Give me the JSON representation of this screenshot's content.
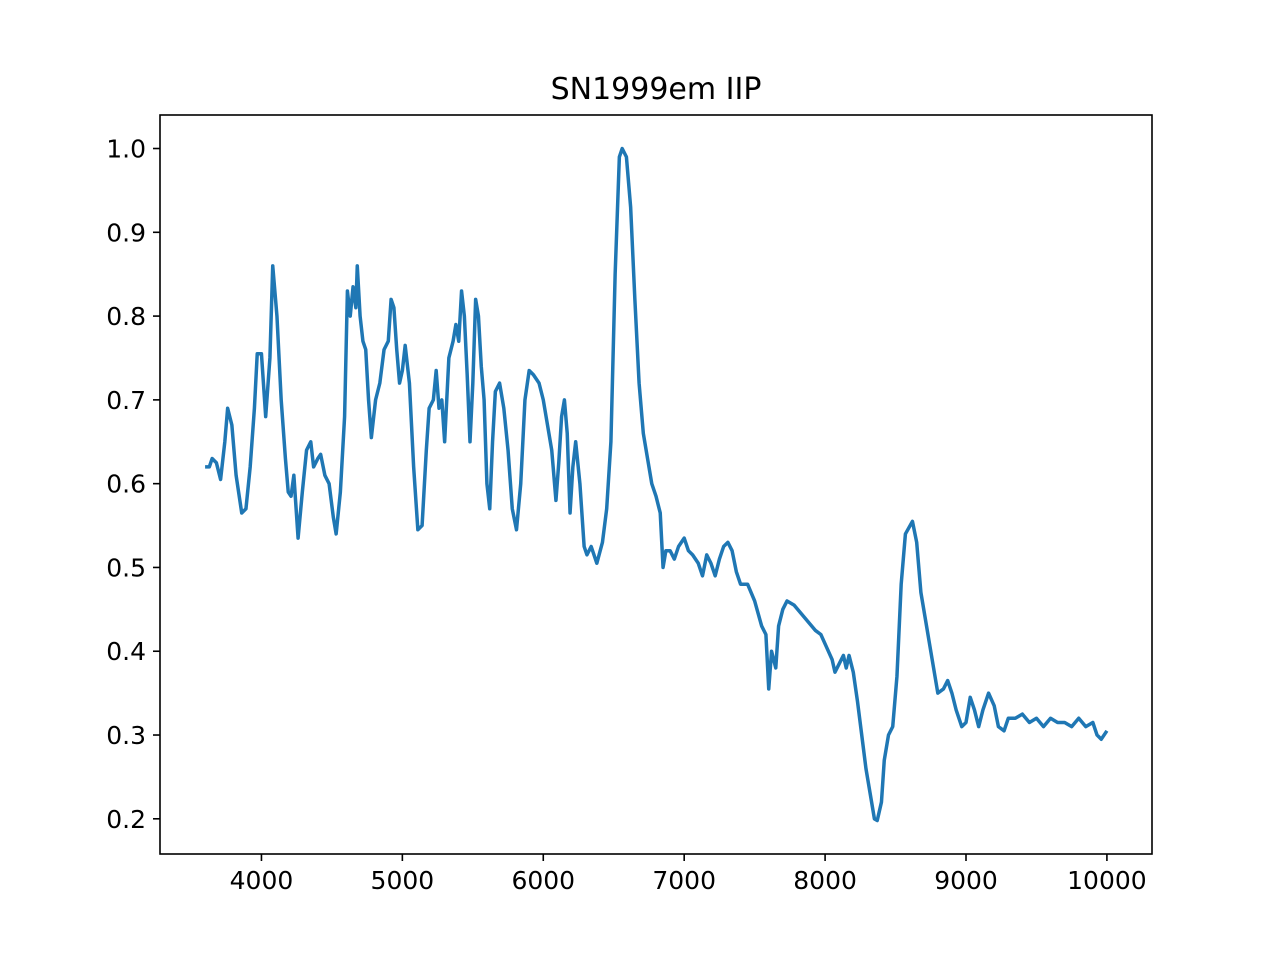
{
  "chart_data": {
    "type": "line",
    "title": "SN1999em IIP",
    "x": [
      3600,
      3630,
      3650,
      3680,
      3710,
      3740,
      3760,
      3790,
      3820,
      3860,
      3890,
      3920,
      3950,
      3970,
      4000,
      4030,
      4060,
      4080,
      4110,
      4140,
      4170,
      4190,
      4210,
      4230,
      4260,
      4290,
      4320,
      4350,
      4370,
      4400,
      4420,
      4450,
      4480,
      4510,
      4530,
      4560,
      4590,
      4610,
      4630,
      4650,
      4670,
      4680,
      4700,
      4720,
      4740,
      4760,
      4780,
      4810,
      4840,
      4870,
      4900,
      4920,
      4940,
      4960,
      4980,
      5000,
      5020,
      5050,
      5080,
      5110,
      5140,
      5170,
      5190,
      5220,
      5240,
      5260,
      5280,
      5300,
      5330,
      5360,
      5380,
      5400,
      5420,
      5440,
      5460,
      5480,
      5500,
      5520,
      5540,
      5560,
      5580,
      5600,
      5620,
      5640,
      5660,
      5690,
      5720,
      5750,
      5780,
      5810,
      5840,
      5870,
      5900,
      5930,
      5970,
      6000,
      6030,
      6060,
      6090,
      6110,
      6130,
      6150,
      6170,
      6190,
      6210,
      6230,
      6260,
      6290,
      6310,
      6340,
      6380,
      6420,
      6450,
      6480,
      6510,
      6540,
      6560,
      6590,
      6620,
      6650,
      6680,
      6710,
      6740,
      6770,
      6800,
      6830,
      6850,
      6870,
      6900,
      6930,
      6960,
      7000,
      7030,
      7060,
      7100,
      7130,
      7160,
      7190,
      7220,
      7250,
      7280,
      7310,
      7340,
      7370,
      7400,
      7450,
      7500,
      7550,
      7580,
      7600,
      7620,
      7650,
      7670,
      7700,
      7730,
      7780,
      7830,
      7880,
      7930,
      7970,
      8010,
      8050,
      8070,
      8100,
      8130,
      8150,
      8170,
      8200,
      8230,
      8260,
      8290,
      8320,
      8350,
      8370,
      8400,
      8420,
      8450,
      8480,
      8510,
      8540,
      8570,
      8620,
      8650,
      8680,
      8710,
      8740,
      8770,
      8800,
      8840,
      8870,
      8900,
      8930,
      8970,
      9000,
      9030,
      9060,
      9090,
      9120,
      9160,
      9200,
      9230,
      9270,
      9300,
      9350,
      9400,
      9450,
      9500,
      9550,
      9600,
      9650,
      9700,
      9750,
      9800,
      9850,
      9900,
      9930,
      9960,
      10000
    ],
    "values": [
      0.62,
      0.62,
      0.63,
      0.625,
      0.605,
      0.65,
      0.69,
      0.67,
      0.61,
      0.565,
      0.57,
      0.62,
      0.69,
      0.755,
      0.755,
      0.68,
      0.75,
      0.86,
      0.8,
      0.7,
      0.63,
      0.59,
      0.585,
      0.61,
      0.535,
      0.59,
      0.64,
      0.65,
      0.62,
      0.63,
      0.635,
      0.61,
      0.6,
      0.56,
      0.54,
      0.59,
      0.68,
      0.83,
      0.8,
      0.835,
      0.81,
      0.86,
      0.8,
      0.77,
      0.76,
      0.7,
      0.655,
      0.7,
      0.72,
      0.76,
      0.77,
      0.82,
      0.81,
      0.76,
      0.72,
      0.735,
      0.765,
      0.72,
      0.62,
      0.545,
      0.55,
      0.64,
      0.69,
      0.7,
      0.735,
      0.69,
      0.7,
      0.65,
      0.75,
      0.77,
      0.79,
      0.77,
      0.83,
      0.8,
      0.73,
      0.65,
      0.72,
      0.82,
      0.8,
      0.74,
      0.7,
      0.6,
      0.57,
      0.65,
      0.71,
      0.72,
      0.69,
      0.64,
      0.57,
      0.545,
      0.6,
      0.7,
      0.735,
      0.73,
      0.72,
      0.7,
      0.67,
      0.64,
      0.58,
      0.625,
      0.68,
      0.7,
      0.66,
      0.565,
      0.62,
      0.65,
      0.6,
      0.525,
      0.515,
      0.525,
      0.505,
      0.53,
      0.57,
      0.65,
      0.85,
      0.99,
      1.0,
      0.99,
      0.93,
      0.82,
      0.72,
      0.66,
      0.63,
      0.6,
      0.585,
      0.565,
      0.5,
      0.52,
      0.52,
      0.51,
      0.525,
      0.535,
      0.52,
      0.515,
      0.505,
      0.49,
      0.515,
      0.505,
      0.49,
      0.51,
      0.525,
      0.53,
      0.52,
      0.495,
      0.48,
      0.48,
      0.46,
      0.43,
      0.42,
      0.355,
      0.4,
      0.38,
      0.43,
      0.45,
      0.46,
      0.455,
      0.445,
      0.435,
      0.425,
      0.42,
      0.405,
      0.39,
      0.375,
      0.385,
      0.395,
      0.38,
      0.395,
      0.375,
      0.34,
      0.3,
      0.26,
      0.23,
      0.2,
      0.198,
      0.22,
      0.27,
      0.3,
      0.31,
      0.37,
      0.48,
      0.54,
      0.555,
      0.53,
      0.47,
      0.44,
      0.41,
      0.38,
      0.35,
      0.355,
      0.365,
      0.35,
      0.33,
      0.31,
      0.315,
      0.345,
      0.33,
      0.31,
      0.33,
      0.35,
      0.335,
      0.31,
      0.305,
      0.32,
      0.32,
      0.325,
      0.315,
      0.32,
      0.31,
      0.32,
      0.315,
      0.315,
      0.31,
      0.32,
      0.31,
      0.315,
      0.3,
      0.295,
      0.305
    ],
    "color": "#1f77b4",
    "xlim": [
      3280,
      10320
    ],
    "ylim": [
      0.158,
      1.04
    ],
    "xticks": [
      4000,
      5000,
      6000,
      7000,
      8000,
      9000,
      10000
    ],
    "yticks": [
      0.2,
      0.3,
      0.4,
      0.5,
      0.6,
      0.7,
      0.8,
      0.9,
      {
        "value": 1,
        "label": "1.0"
      }
    ]
  }
}
